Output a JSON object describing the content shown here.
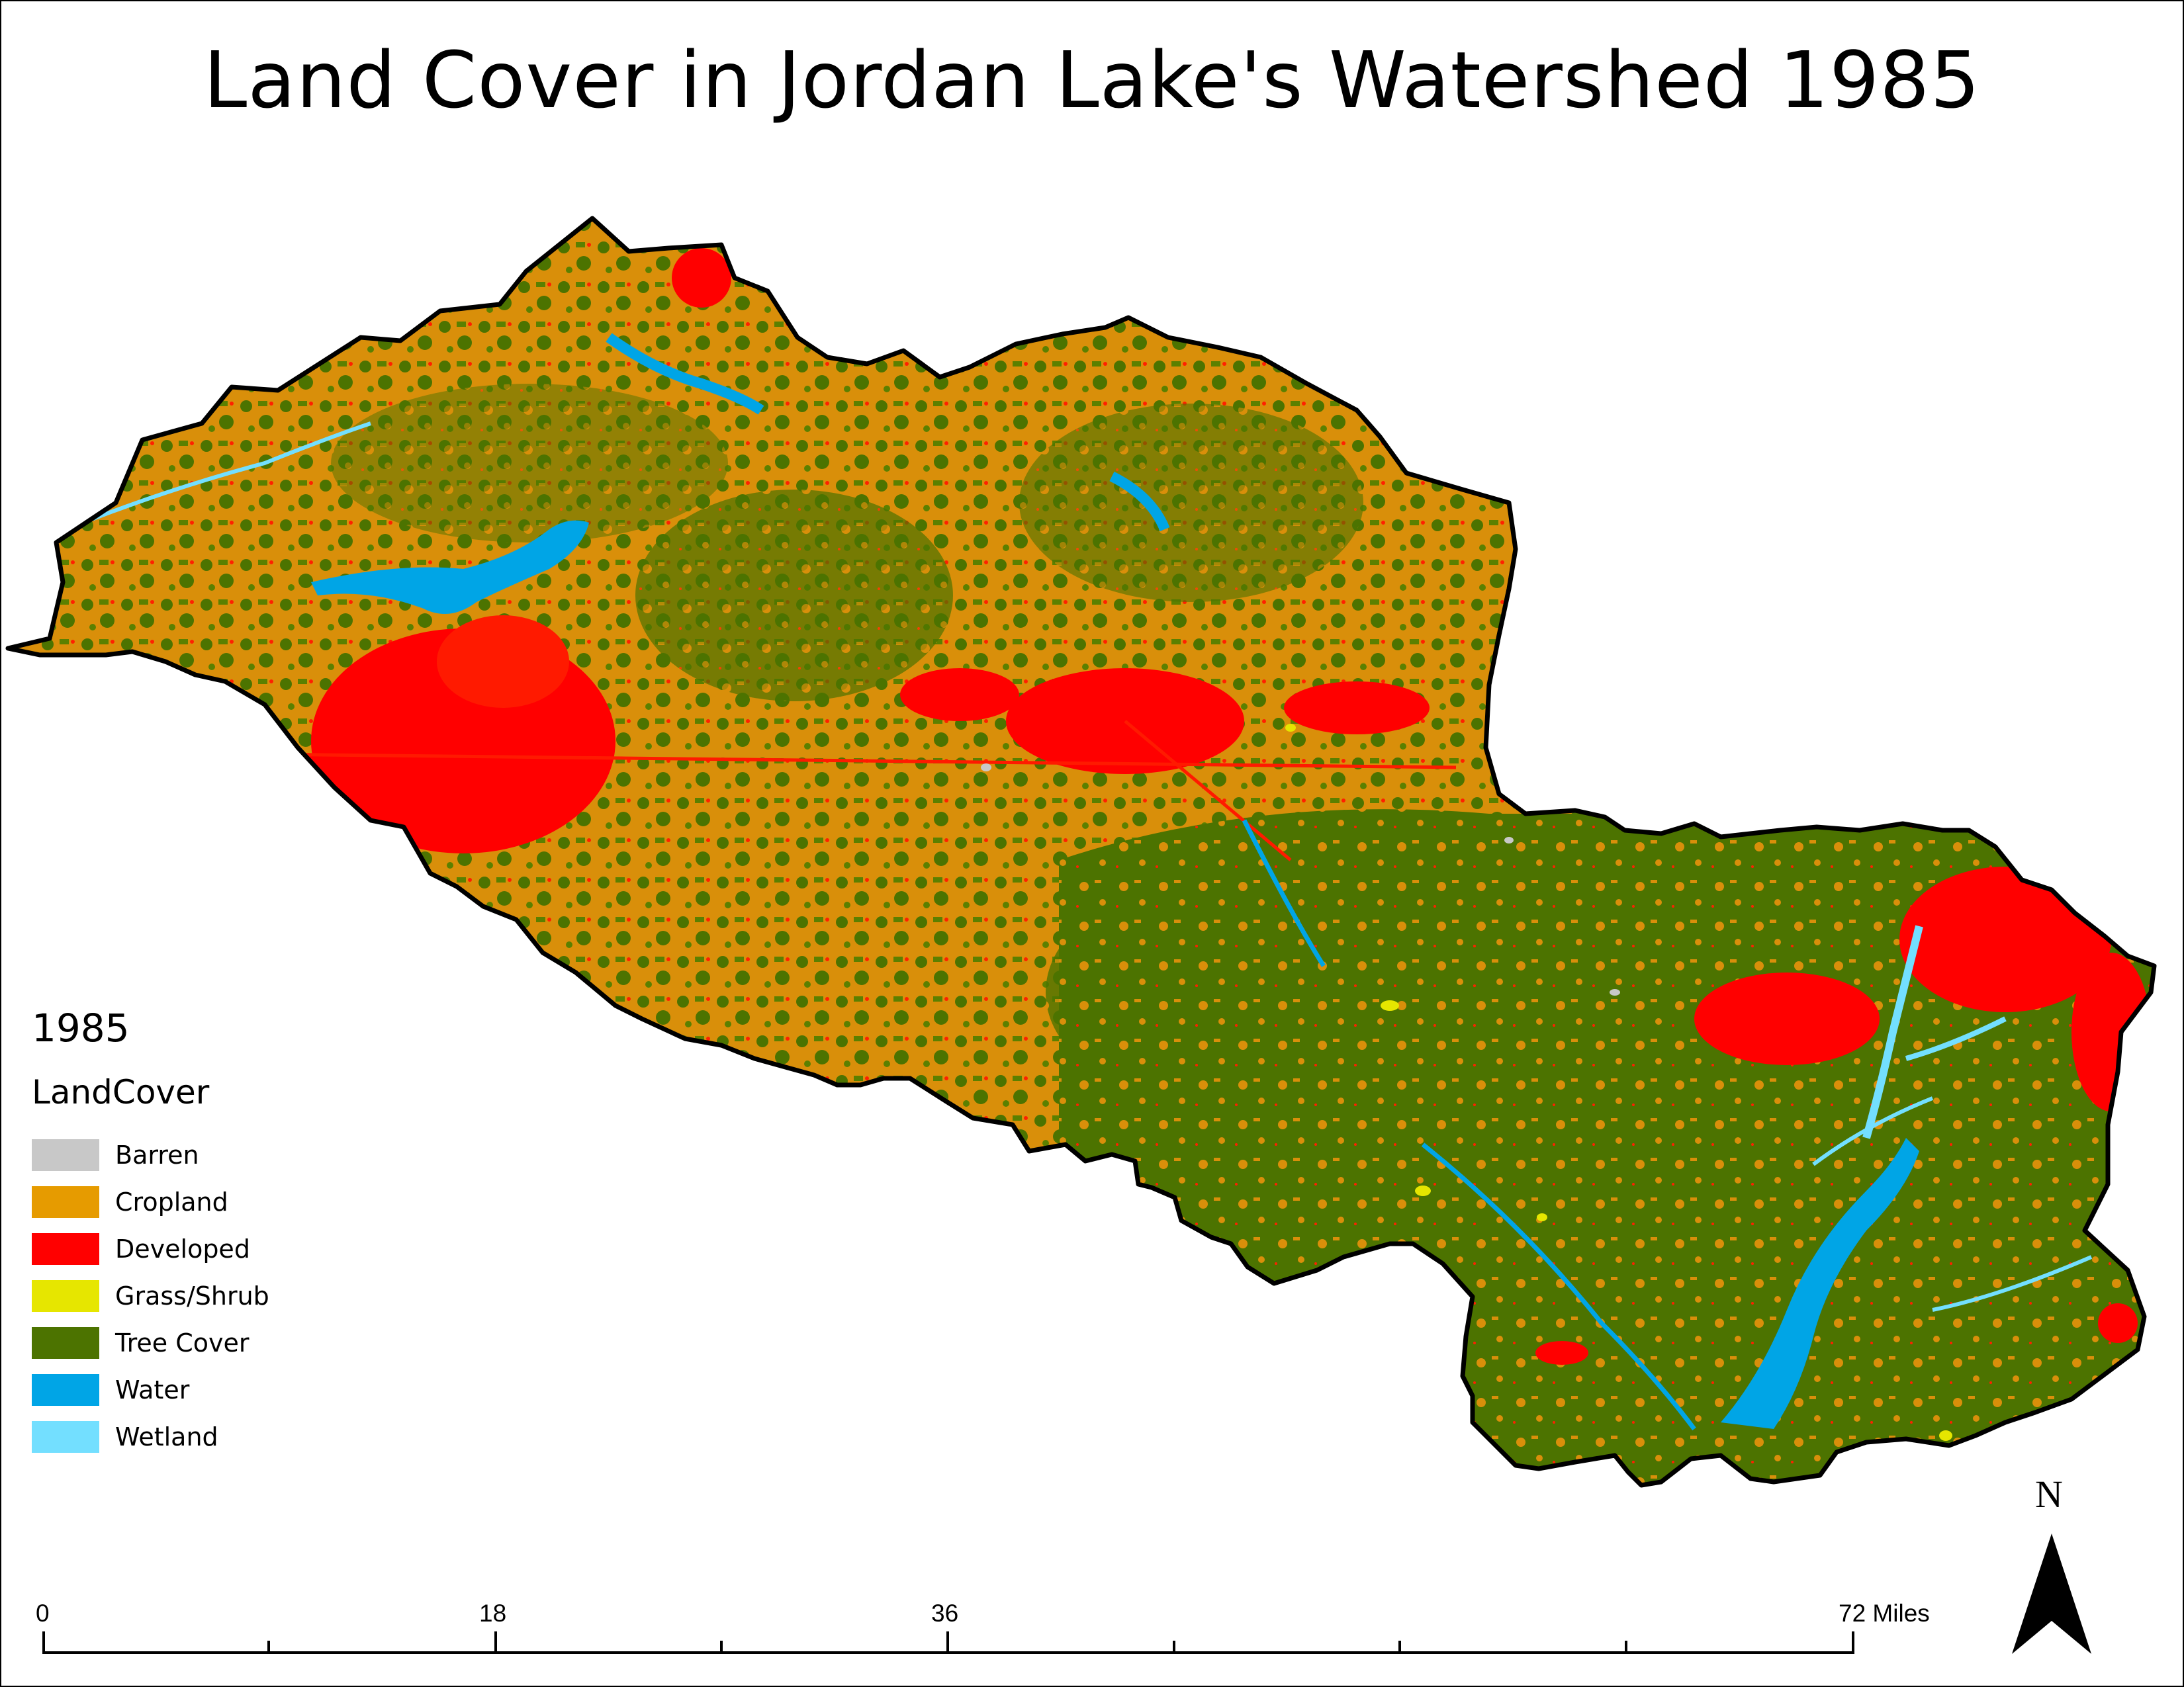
{
  "title": "Land Cover in Jordan Lake's Watershed 1985",
  "legend": {
    "year": "1985",
    "field": "LandCover",
    "items": [
      {
        "label": "Barren",
        "color": "#c8c8c8"
      },
      {
        "label": "Cropland",
        "color": "#e69b00"
      },
      {
        "label": "Developed",
        "color": "#ff0000"
      },
      {
        "label": "Grass/Shrub",
        "color": "#e6e600"
      },
      {
        "label": "Tree Cover",
        "color": "#4c7300"
      },
      {
        "label": "Water",
        "color": "#00a5e6"
      },
      {
        "label": "Wetland",
        "color": "#73dfff"
      }
    ]
  },
  "scale_bar": {
    "labels": [
      "0",
      "18",
      "36",
      "72 Miles"
    ]
  },
  "north_arrow": {
    "label": "N"
  }
}
